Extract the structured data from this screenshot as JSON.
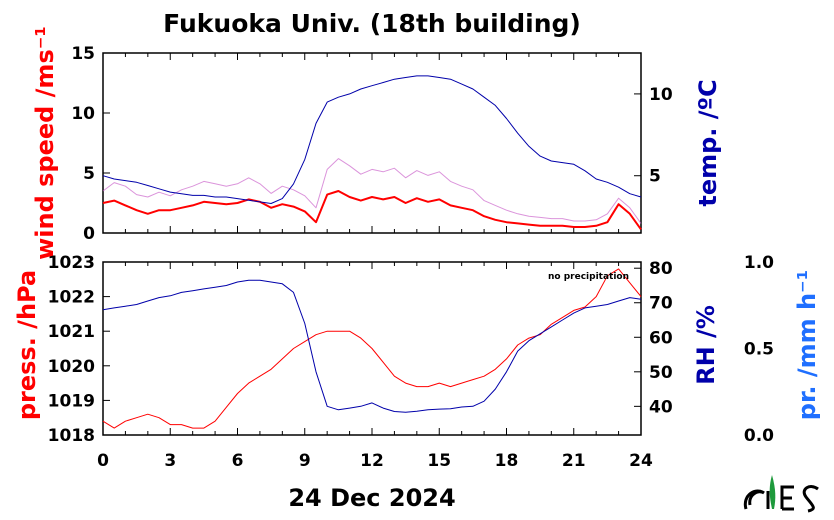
{
  "colors": {
    "wind": "#ff0000",
    "wind_gust": "#cc66cc",
    "temperature": "#0000aa",
    "pressure": "#ff0000",
    "humidity": "#0000aa",
    "precip": "#1f6fff"
  },
  "chart_data": [
    {
      "type": "line",
      "title": "Fukuoka Univ. (18th building)",
      "xlim": [
        0,
        24
      ],
      "x_ticks": [
        "0",
        "3",
        "6",
        "9",
        "12",
        "15",
        "18",
        "21",
        "24"
      ],
      "xlabel": "24 Dec 2024",
      "left_axis": {
        "label": "wind speed /ms⁻¹",
        "ylim": [
          0,
          15
        ],
        "ticks": [
          "0",
          "5",
          "10",
          "15"
        ]
      },
      "right_axis": {
        "label": "temp. /ºC",
        "ylim": [
          1.5,
          12.5
        ],
        "ticks": [
          "5",
          "10"
        ]
      },
      "series": [
        {
          "axis": "left",
          "style": "thin-gust",
          "color_key": "wind_gust",
          "x": [
            0,
            0.5,
            1,
            1.5,
            2,
            2.5,
            3,
            3.5,
            4,
            4.5,
            5,
            5.5,
            6,
            6.5,
            7,
            7.5,
            8,
            8.5,
            9,
            9.5,
            10,
            10.5,
            11,
            11.5,
            12,
            12.5,
            13,
            13.5,
            14,
            14.5,
            15,
            15.5,
            16,
            16.5,
            17,
            17.5,
            18,
            18.5,
            19,
            19.5,
            20,
            20.5,
            21,
            21.5,
            22,
            22.5,
            23,
            23.5,
            24
          ],
          "y": [
            3.5,
            4.2,
            3.9,
            3.2,
            3.0,
            3.4,
            3.1,
            3.6,
            3.9,
            4.3,
            4.1,
            3.9,
            4.1,
            4.6,
            4.1,
            3.3,
            3.9,
            3.6,
            3.1,
            2.1,
            5.3,
            6.2,
            5.6,
            4.9,
            5.3,
            5.1,
            5.4,
            4.6,
            5.2,
            4.8,
            5.1,
            4.3,
            3.9,
            3.6,
            2.7,
            2.3,
            1.9,
            1.6,
            1.4,
            1.3,
            1.2,
            1.2,
            1.0,
            1.0,
            1.1,
            1.6,
            2.9,
            2.1,
            0.8
          ]
        },
        {
          "axis": "left",
          "color_key": "wind",
          "x": [
            0,
            0.5,
            1,
            1.5,
            2,
            2.5,
            3,
            3.5,
            4,
            4.5,
            5,
            5.5,
            6,
            6.5,
            7,
            7.5,
            8,
            8.5,
            9,
            9.5,
            10,
            10.5,
            11,
            11.5,
            12,
            12.5,
            13,
            13.5,
            14,
            14.5,
            15,
            15.5,
            16,
            16.5,
            17,
            17.5,
            18,
            18.5,
            19,
            19.5,
            20,
            20.5,
            21,
            21.5,
            22,
            22.5,
            23,
            23.5,
            24
          ],
          "y": [
            2.5,
            2.7,
            2.3,
            1.9,
            1.6,
            1.9,
            1.9,
            2.1,
            2.3,
            2.6,
            2.5,
            2.4,
            2.5,
            2.8,
            2.6,
            2.1,
            2.4,
            2.2,
            1.8,
            0.9,
            3.2,
            3.5,
            3.0,
            2.7,
            3.0,
            2.8,
            3.0,
            2.5,
            2.9,
            2.6,
            2.8,
            2.3,
            2.1,
            1.9,
            1.4,
            1.1,
            0.9,
            0.8,
            0.7,
            0.6,
            0.6,
            0.6,
            0.5,
            0.5,
            0.6,
            0.9,
            2.4,
            1.6,
            0.3
          ]
        },
        {
          "axis": "right",
          "color_key": "temperature",
          "x": [
            0,
            0.5,
            1,
            1.5,
            2,
            2.5,
            3,
            3.5,
            4,
            4.5,
            5,
            5.5,
            6,
            6.5,
            7,
            7.5,
            8,
            8.5,
            9,
            9.5,
            10,
            10.5,
            11,
            11.5,
            12,
            12.5,
            13,
            13.5,
            14,
            14.5,
            15,
            15.5,
            16,
            16.5,
            17,
            17.5,
            18,
            18.5,
            19,
            19.5,
            20,
            20.5,
            21,
            21.5,
            22,
            22.5,
            23,
            23.5,
            24
          ],
          "y": [
            5.0,
            4.8,
            4.7,
            4.6,
            4.4,
            4.2,
            4.0,
            3.9,
            3.8,
            3.8,
            3.7,
            3.7,
            3.6,
            3.5,
            3.4,
            3.3,
            3.6,
            4.5,
            6.0,
            8.2,
            9.5,
            9.8,
            10.0,
            10.3,
            10.5,
            10.7,
            10.9,
            11.0,
            11.1,
            11.1,
            11.0,
            10.9,
            10.6,
            10.3,
            9.8,
            9.3,
            8.5,
            7.6,
            6.8,
            6.2,
            5.9,
            5.8,
            5.7,
            5.3,
            4.8,
            4.6,
            4.3,
            3.9,
            3.7
          ]
        }
      ]
    },
    {
      "type": "line",
      "xlim": [
        0,
        24
      ],
      "left_axis": {
        "label": "press. /hPa",
        "ylim": [
          1018,
          1023
        ],
        "ticks": [
          "1018",
          "1019",
          "1020",
          "1021",
          "1022",
          "1023"
        ]
      },
      "right_axis": {
        "label": "RH /%",
        "ylim": [
          31.7,
          81.8
        ],
        "ticks": [
          "40",
          "50",
          "60",
          "70",
          "80"
        ]
      },
      "far_right_axis": {
        "label": "pr. /mm h⁻¹",
        "ylim": [
          0.0,
          1.0
        ],
        "ticks": [
          "0.0",
          "0.5",
          "1.0"
        ]
      },
      "annotation": "no precipitation",
      "series": [
        {
          "axis": "left",
          "color_key": "pressure",
          "x": [
            0,
            0.5,
            1,
            1.5,
            2,
            2.5,
            3,
            3.5,
            4,
            4.5,
            5,
            5.5,
            6,
            6.5,
            7,
            7.5,
            8,
            8.5,
            9,
            9.5,
            10,
            10.5,
            11,
            11.5,
            12,
            12.5,
            13,
            13.5,
            14,
            14.5,
            15,
            15.5,
            16,
            16.5,
            17,
            17.5,
            18,
            18.5,
            19,
            19.5,
            20,
            20.5,
            21,
            21.5,
            22,
            22.5,
            23,
            23.5,
            24
          ],
          "y": [
            1018.4,
            1018.2,
            1018.4,
            1018.5,
            1018.6,
            1018.5,
            1018.3,
            1018.3,
            1018.2,
            1018.2,
            1018.4,
            1018.8,
            1019.2,
            1019.5,
            1019.7,
            1019.9,
            1020.2,
            1020.5,
            1020.7,
            1020.9,
            1021.0,
            1021.0,
            1021.0,
            1020.8,
            1020.5,
            1020.1,
            1019.7,
            1019.5,
            1019.4,
            1019.4,
            1019.5,
            1019.4,
            1019.5,
            1019.6,
            1019.7,
            1019.9,
            1020.2,
            1020.6,
            1020.8,
            1020.9,
            1021.2,
            1021.4,
            1021.6,
            1021.7,
            1022.0,
            1022.6,
            1022.8,
            1022.4,
            1022.0
          ]
        },
        {
          "axis": "right",
          "color_key": "humidity",
          "x": [
            0,
            0.5,
            1,
            1.5,
            2,
            2.5,
            3,
            3.5,
            4,
            4.5,
            5,
            5.5,
            6,
            6.5,
            7,
            7.5,
            8,
            8.5,
            9,
            9.5,
            10,
            10.5,
            11,
            11.5,
            12,
            12.5,
            13,
            13.5,
            14,
            14.5,
            15,
            15.5,
            16,
            16.5,
            17,
            17.5,
            18,
            18.5,
            19,
            19.5,
            20,
            20.5,
            21,
            21.5,
            22,
            22.5,
            23,
            23.5,
            24
          ],
          "y": [
            68,
            68.5,
            69,
            69.5,
            70.5,
            71.5,
            72,
            73,
            73.5,
            74,
            74.5,
            75,
            76,
            76.5,
            76.5,
            76,
            75.5,
            73,
            64,
            50,
            40,
            39,
            39.5,
            40,
            41,
            39.5,
            38.5,
            38.3,
            38.6,
            39,
            39.2,
            39.3,
            39.8,
            40,
            41.5,
            45,
            50,
            56,
            59,
            61,
            63,
            65,
            67,
            68.5,
            69,
            69.5,
            70.5,
            71.5,
            71
          ]
        }
      ]
    }
  ]
}
